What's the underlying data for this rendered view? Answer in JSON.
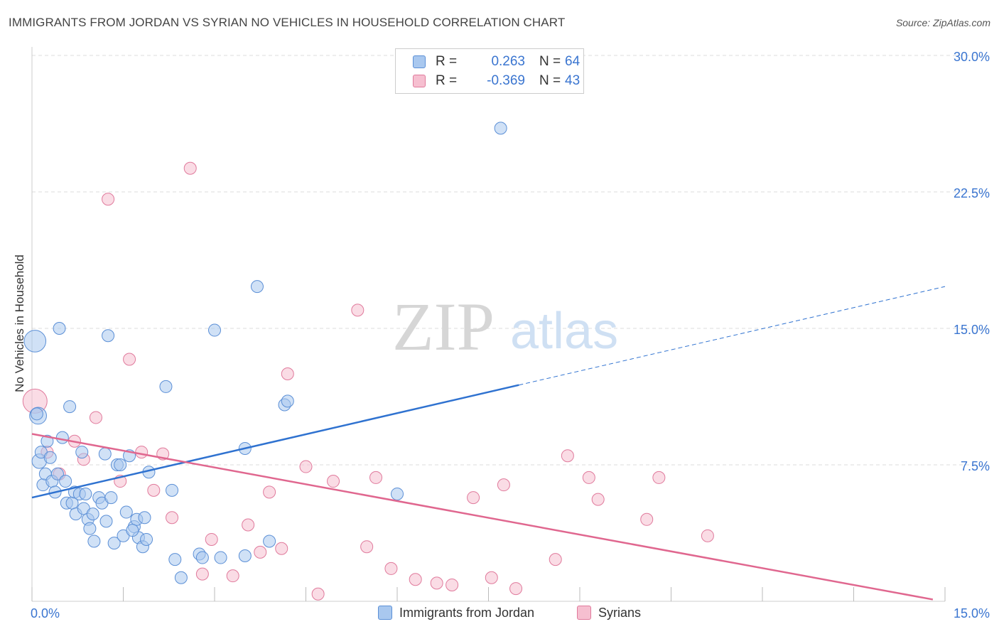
{
  "title": "IMMIGRANTS FROM JORDAN VS SYRIAN NO VEHICLES IN HOUSEHOLD CORRELATION CHART",
  "source": "Source: ZipAtlas.com",
  "watermark": {
    "zip": "ZIP",
    "atlas": "atlas"
  },
  "stats": {
    "jordan": {
      "r_label": "R =",
      "r_value": "0.263",
      "n_label": "N =",
      "n_value": "64"
    },
    "syria": {
      "r_label": "R =",
      "r_value": "-0.369",
      "n_label": "N =",
      "n_value": "43"
    }
  },
  "legend": {
    "jordan": "Immigrants from Jordan",
    "syria": "Syrians"
  },
  "colors": {
    "jordan_fill": "#a9c8ef",
    "jordan_stroke": "#5b8fd6",
    "jordan_line": "#2f72d0",
    "syria_fill": "#f6bfd0",
    "syria_stroke": "#e07a9c",
    "syria_line": "#e0678f",
    "axis_text": "#3a75d0",
    "grid": "#dddddd"
  },
  "chart_data": {
    "type": "scatter",
    "title": "IMMIGRANTS FROM JORDAN VS SYRIAN NO VEHICLES IN HOUSEHOLD CORRELATION CHART",
    "xlabel": "",
    "ylabel": "No Vehicles in Household",
    "xlim": [
      0,
      15
    ],
    "ylim": [
      0,
      30
    ],
    "x_tick_labels": [
      "0.0%",
      "15.0%"
    ],
    "y_ticks": [
      7.5,
      15.0,
      22.5,
      30.0
    ],
    "y_tick_labels": [
      "7.5%",
      "15.0%",
      "22.5%",
      "30.0%"
    ],
    "grid": true,
    "legend_position": "bottom-center",
    "series": [
      {
        "name": "Immigrants from Jordan",
        "r": 0.263,
        "n": 64,
        "trend": {
          "x0": 0,
          "y0": 5.7,
          "x_solid_end": 8.0,
          "x1": 15,
          "y1": 17.3
        },
        "points": [
          [
            0.05,
            14.3,
            1.8
          ],
          [
            0.1,
            10.2,
            1.4
          ],
          [
            0.12,
            7.7,
            1.2
          ],
          [
            0.15,
            8.2,
            1.0
          ],
          [
            0.18,
            6.4,
            1.0
          ],
          [
            0.22,
            7.0,
            1.0
          ],
          [
            0.25,
            8.8,
            1.0
          ],
          [
            0.3,
            7.9,
            1.0
          ],
          [
            0.33,
            6.6,
            1.0
          ],
          [
            0.38,
            6.0,
            1.0
          ],
          [
            0.42,
            7.0,
            1.0
          ],
          [
            0.45,
            15.0,
            1.0
          ],
          [
            0.5,
            9.0,
            1.0
          ],
          [
            0.55,
            6.6,
            1.0
          ],
          [
            0.57,
            5.4,
            1.0
          ],
          [
            0.62,
            10.7,
            1.0
          ],
          [
            0.66,
            5.4,
            1.0
          ],
          [
            0.7,
            6.0,
            1.0
          ],
          [
            0.72,
            4.8,
            1.0
          ],
          [
            0.78,
            5.9,
            1.0
          ],
          [
            0.82,
            8.2,
            1.0
          ],
          [
            0.85,
            5.1,
            1.0
          ],
          [
            0.88,
            5.9,
            1.0
          ],
          [
            0.92,
            4.5,
            1.0
          ],
          [
            0.95,
            4.0,
            1.0
          ],
          [
            1.0,
            4.8,
            1.0
          ],
          [
            1.02,
            3.3,
            1.0
          ],
          [
            1.1,
            5.7,
            1.0
          ],
          [
            1.15,
            5.4,
            1.0
          ],
          [
            1.2,
            8.1,
            1.0
          ],
          [
            1.22,
            4.4,
            1.0
          ],
          [
            1.25,
            14.6,
            1.0
          ],
          [
            1.3,
            5.7,
            1.0
          ],
          [
            1.35,
            3.2,
            1.0
          ],
          [
            1.4,
            7.5,
            1.0
          ],
          [
            1.45,
            7.5,
            1.0
          ],
          [
            1.5,
            3.6,
            1.0
          ],
          [
            1.55,
            4.9,
            1.0
          ],
          [
            1.6,
            8.0,
            1.0
          ],
          [
            1.68,
            4.1,
            1.0
          ],
          [
            1.72,
            4.5,
            1.0
          ],
          [
            1.75,
            3.5,
            1.0
          ],
          [
            1.82,
            3.0,
            1.0
          ],
          [
            1.85,
            4.6,
            1.0
          ],
          [
            1.88,
            3.4,
            1.0
          ],
          [
            1.92,
            7.1,
            1.0
          ],
          [
            2.2,
            11.8,
            1.0
          ],
          [
            2.3,
            6.1,
            1.0
          ],
          [
            2.35,
            2.3,
            1.0
          ],
          [
            2.45,
            1.3,
            1.0
          ],
          [
            2.75,
            2.6,
            1.0
          ],
          [
            2.8,
            2.4,
            1.0
          ],
          [
            3.0,
            14.9,
            1.0
          ],
          [
            3.1,
            2.4,
            1.0
          ],
          [
            3.5,
            8.4,
            1.0
          ],
          [
            3.5,
            2.5,
            1.0
          ],
          [
            3.7,
            17.3,
            1.0
          ],
          [
            3.9,
            3.3,
            1.0
          ],
          [
            4.15,
            10.8,
            1.0
          ],
          [
            4.2,
            11.0,
            1.0
          ],
          [
            6.0,
            5.9,
            1.0
          ],
          [
            7.7,
            26.0,
            1.0
          ],
          [
            0.08,
            10.3,
            1.0
          ],
          [
            1.65,
            3.9,
            1.0
          ]
        ]
      },
      {
        "name": "Syrians",
        "r": -0.369,
        "n": 43,
        "trend": {
          "x0": 0,
          "y0": 9.2,
          "x1": 14.8,
          "y1": 0.1
        },
        "points": [
          [
            0.05,
            11.0,
            2.0
          ],
          [
            0.25,
            8.2,
            1.0
          ],
          [
            0.45,
            7.0,
            1.0
          ],
          [
            0.7,
            8.8,
            1.0
          ],
          [
            0.85,
            7.8,
            1.0
          ],
          [
            1.05,
            10.1,
            1.0
          ],
          [
            1.25,
            22.1,
            1.0
          ],
          [
            1.45,
            6.6,
            1.0
          ],
          [
            1.6,
            13.3,
            1.0
          ],
          [
            1.8,
            8.2,
            1.0
          ],
          [
            2.0,
            6.1,
            1.0
          ],
          [
            2.15,
            8.1,
            1.0
          ],
          [
            2.3,
            4.6,
            1.0
          ],
          [
            2.6,
            23.8,
            1.0
          ],
          [
            2.8,
            1.5,
            1.0
          ],
          [
            2.95,
            3.4,
            1.0
          ],
          [
            3.3,
            1.4,
            1.0
          ],
          [
            3.55,
            4.2,
            1.0
          ],
          [
            3.75,
            2.7,
            1.0
          ],
          [
            3.9,
            6.0,
            1.0
          ],
          [
            4.1,
            2.9,
            1.0
          ],
          [
            4.2,
            12.5,
            1.0
          ],
          [
            4.5,
            7.4,
            1.0
          ],
          [
            4.7,
            0.4,
            1.0
          ],
          [
            4.95,
            6.6,
            1.0
          ],
          [
            5.35,
            16.0,
            1.0
          ],
          [
            5.5,
            3.0,
            1.0
          ],
          [
            5.65,
            6.8,
            1.0
          ],
          [
            5.9,
            1.8,
            1.0
          ],
          [
            6.3,
            1.2,
            1.0
          ],
          [
            6.65,
            1.0,
            1.0
          ],
          [
            6.9,
            0.9,
            1.0
          ],
          [
            7.25,
            5.7,
            1.0
          ],
          [
            7.55,
            1.3,
            1.0
          ],
          [
            7.75,
            6.4,
            1.0
          ],
          [
            7.95,
            0.7,
            1.0
          ],
          [
            8.6,
            2.3,
            1.0
          ],
          [
            8.8,
            8.0,
            1.0
          ],
          [
            9.15,
            6.8,
            1.0
          ],
          [
            9.3,
            5.6,
            1.0
          ],
          [
            10.1,
            4.5,
            1.0
          ],
          [
            10.3,
            6.8,
            1.0
          ],
          [
            11.1,
            3.6,
            1.0
          ]
        ]
      }
    ]
  }
}
